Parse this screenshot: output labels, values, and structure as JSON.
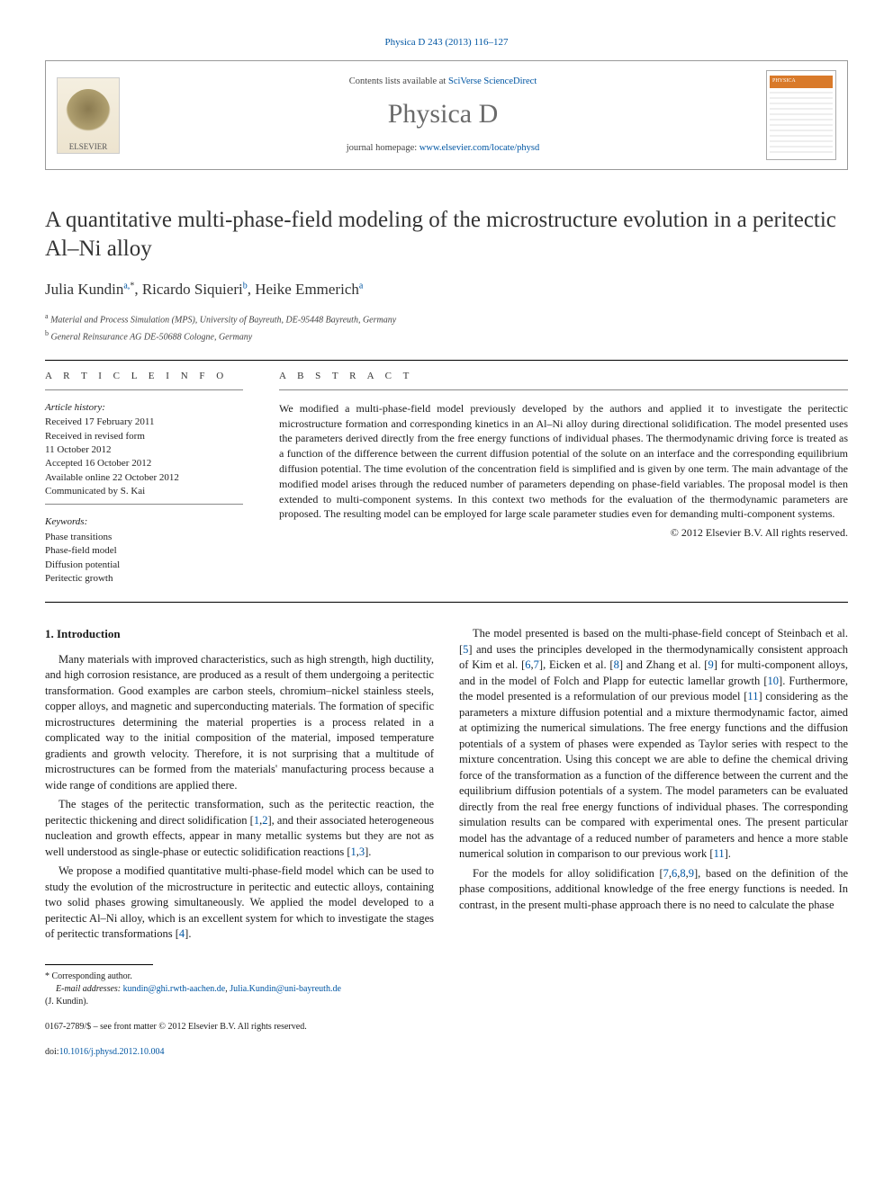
{
  "top_reference": "Physica D 243 (2013) 116–127",
  "header": {
    "contents_prefix": "Contents lists available at ",
    "contents_link": "SciVerse ScienceDirect",
    "journal_name": "Physica D",
    "homepage_prefix": "journal homepage: ",
    "homepage_link": "www.elsevier.com/locate/physd",
    "publisher_label": "ELSEVIER",
    "cover_label": "PHYSICA"
  },
  "title": "A quantitative multi-phase-field modeling of the microstructure evolution in a peritectic Al–Ni alloy",
  "authors": {
    "a1_name": "Julia Kundin",
    "a1_sup": "a,",
    "a1_ast": "*",
    "a2_name": "Ricardo Siquieri",
    "a2_sup": "b",
    "a3_name": "Heike Emmerich",
    "a3_sup": "a"
  },
  "affiliations": {
    "a": "Material and Process Simulation (MPS), University of Bayreuth, DE-95448 Bayreuth, Germany",
    "b": "General Reinsurance AG DE-50688 Cologne, Germany"
  },
  "article_info": {
    "heading": "A R T I C L E   I N F O",
    "history_label": "Article history:",
    "received": "Received 17 February 2011",
    "revised": "Received in revised form",
    "revised_date": "11 October 2012",
    "accepted": "Accepted 16 October 2012",
    "online": "Available online 22 October 2012",
    "communicated": "Communicated by S. Kai",
    "keywords_label": "Keywords:",
    "kw1": "Phase transitions",
    "kw2": "Phase-field model",
    "kw3": "Diffusion potential",
    "kw4": "Peritectic growth"
  },
  "abstract": {
    "heading": "A B S T R A C T",
    "text": "We modified a multi-phase-field model previously developed by the authors and applied it to investigate the peritectic microstructure formation and corresponding kinetics in an Al–Ni alloy during directional solidification. The model presented uses the parameters derived directly from the free energy functions of individual phases. The thermodynamic driving force is treated as a function of the difference between the current diffusion potential of the solute on an interface and the corresponding equilibrium diffusion potential. The time evolution of the concentration field is simplified and is given by one term. The main advantage of the modified model arises through the reduced number of parameters depending on phase-field variables. The proposal model is then extended to multi-component systems. In this context two methods for the evaluation of the thermodynamic parameters are proposed. The resulting model can be employed for large scale parameter studies even for demanding multi-component systems.",
    "copyright": "© 2012 Elsevier B.V. All rights reserved."
  },
  "section1": {
    "heading": "1. Introduction",
    "p1": "Many materials with improved characteristics, such as high strength, high ductility, and high corrosion resistance, are produced as a result of them undergoing a peritectic transformation. Good examples are carbon steels, chromium–nickel stainless steels, copper alloys, and magnetic and superconducting materials. The formation of specific microstructures determining the material properties is a process related in a complicated way to the initial composition of the material, imposed temperature gradients and growth velocity. Therefore, it is not surprising that a multitude of microstructures can be formed from the materials' manufacturing process because a wide range of conditions are applied there.",
    "p2a": "The stages of the peritectic transformation, such as the peritectic reaction, the peritectic thickening and direct solidification [",
    "p2r1": "1",
    "p2s1": ",",
    "p2r2": "2",
    "p2b": "], and their associated heterogeneous nucleation and growth effects, appear in many metallic systems but they are not as well understood as single-phase or eutectic solidification reactions [",
    "p2r3": "1",
    "p2s2": ",",
    "p2r4": "3",
    "p2c": "].",
    "p3a": "We propose a modified quantitative multi-phase-field model which can be used to study the evolution of the microstructure in peritectic and eutectic alloys, containing two solid phases growing simultaneously. We applied the model developed to a peritectic Al–Ni alloy, which is an excellent system for which to investigate the stages of peritectic transformations [",
    "p3r1": "4",
    "p3b": "].",
    "p4a": "The model presented is based on the multi-phase-field concept of Steinbach et al. [",
    "p4r1": "5",
    "p4b": "] and uses the principles developed in the thermodynamically consistent approach of Kim et al. [",
    "p4r2": "6",
    "p4s1": ",",
    "p4r3": "7",
    "p4c": "], Eicken et al. [",
    "p4r4": "8",
    "p4d": "] and Zhang et al. [",
    "p4r5": "9",
    "p4e": "] for multi-component alloys, and in the model of Folch and Plapp for eutectic lamellar growth [",
    "p4r6": "10",
    "p4f": "]. Furthermore, the model presented is a reformulation of our previous model [",
    "p4r7": "11",
    "p4g": "] considering as the parameters a mixture diffusion potential and a mixture thermodynamic factor, aimed at optimizing the numerical simulations. The free energy functions and the diffusion potentials of a system of phases were expended as Taylor series with respect to the mixture concentration. Using this concept we are able to define the chemical driving force of the transformation as a function of the difference between the current and the equilibrium diffusion potentials of a system. The model parameters can be evaluated directly from the real free energy functions of individual phases. The corresponding simulation results can be compared with experimental ones. The present particular model has the advantage of a reduced number of parameters and hence a more stable numerical solution in comparison to our previous work [",
    "p4r8": "11",
    "p4h": "].",
    "p5a": "For the models for alloy solidification [",
    "p5r1": "7",
    "p5s1": ",",
    "p5r2": "6",
    "p5s2": ",",
    "p5r3": "8",
    "p5s3": ",",
    "p5r4": "9",
    "p5b": "], based on the definition of the phase compositions, additional knowledge of the free energy functions is needed. In contrast, in the present multi-phase approach there is no need to calculate the phase"
  },
  "footer": {
    "corr_marker": "*",
    "corr_text": "Corresponding author.",
    "email_label": "E-mail addresses:",
    "email1": "kundin@ghi.rwth-aachen.de",
    "email_sep": ", ",
    "email2": "Julia.Kundin@uni-bayreuth.de",
    "email_owner": "(J. Kundin).",
    "issn_line": "0167-2789/$ – see front matter © 2012 Elsevier B.V. All rights reserved.",
    "doi_label": "doi:",
    "doi": "10.1016/j.physd.2012.10.004"
  },
  "colors": {
    "link": "#0056a3",
    "text": "#1a1a1a",
    "muted": "#6a6a6a"
  }
}
